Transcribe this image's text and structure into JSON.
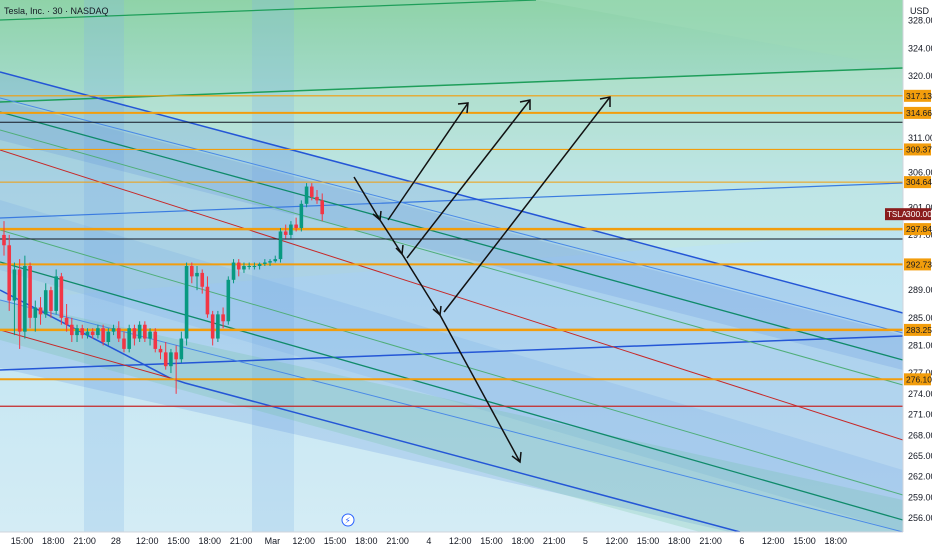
{
  "header": {
    "title": "Tesla, Inc. · 30 · NASDAQ"
  },
  "chart_data": {
    "type": "candlestick",
    "symbol": "TSLA",
    "currency": "USD",
    "ylim": [
      254.0,
      331.0
    ],
    "y_ticks": [
      256.0,
      259.0,
      262.0,
      265.0,
      268.0,
      271.0,
      274.0,
      277.0,
      281.0,
      285.0,
      289.0,
      297.0,
      301.0,
      306.0,
      311.0,
      320.0,
      324.0,
      328.0
    ],
    "x_ticks": [
      "15:00",
      "18:00",
      "21:00",
      "28",
      "12:00",
      "15:00",
      "18:00",
      "21:00",
      "Mar",
      "12:00",
      "15:00",
      "18:00",
      "21:00",
      "4",
      "12:00",
      "15:00",
      "18:00",
      "21:00",
      "5",
      "12:00",
      "15:00",
      "18:00",
      "21:00",
      "6",
      "12:00",
      "15:00",
      "18:00"
    ],
    "bars_per_tick": 6,
    "price_labels": [
      {
        "value": 317.13,
        "text": "317.13",
        "color": "#f29d0c",
        "text_color": "#131722"
      },
      {
        "value": 314.66,
        "text": "314.66",
        "color": "#f29d0c",
        "text_color": "#131722"
      },
      {
        "value": 309.37,
        "text": "309.37",
        "color": "#f29d0c",
        "text_color": "#131722"
      },
      {
        "value": 304.64,
        "text": "304.64",
        "color": "#f29d0c",
        "text_color": "#131722"
      },
      {
        "value": 300.0,
        "text": "300.00",
        "color": "#8a1d1d",
        "text_color": "#ffffff",
        "symbol": "TSLA"
      },
      {
        "value": 297.84,
        "text": "297.84",
        "color": "#f29d0c",
        "text_color": "#131722"
      },
      {
        "value": 292.73,
        "text": "292.73",
        "color": "#f29d0c",
        "text_color": "#131722"
      },
      {
        "value": 283.25,
        "text": "283.25",
        "color": "#f29d0c",
        "text_color": "#131722"
      },
      {
        "value": 276.1,
        "text": "276.10",
        "color": "#f29d0c",
        "text_color": "#131722"
      }
    ],
    "horizontal_lines": [
      {
        "value": 317.13,
        "color": "#f29d0c",
        "width": 1.2
      },
      {
        "value": 314.66,
        "color": "#f29d0c",
        "width": 2
      },
      {
        "value": 313.3,
        "color": "#131722",
        "width": 1
      },
      {
        "value": 309.37,
        "color": "#f29d0c",
        "width": 1.2
      },
      {
        "value": 304.64,
        "color": "#f29d0c",
        "width": 1
      },
      {
        "value": 297.84,
        "color": "#f29d0c",
        "width": 2.5
      },
      {
        "value": 296.4,
        "color": "#131722",
        "width": 1
      },
      {
        "value": 292.73,
        "color": "#f29d0c",
        "width": 2
      },
      {
        "value": 283.25,
        "color": "#f29d0c",
        "width": 2.5
      },
      {
        "value": 276.1,
        "color": "#f29d0c",
        "width": 2
      },
      {
        "value": 272.2,
        "color": "#c62828",
        "width": 1.2
      }
    ],
    "candles": [
      {
        "o": 297.0,
        "h": 299.0,
        "l": 294.0,
        "c": 295.5
      },
      {
        "o": 295.5,
        "h": 297.0,
        "l": 286.0,
        "c": 287.5
      },
      {
        "o": 287.5,
        "h": 293.0,
        "l": 282.5,
        "c": 292.0
      },
      {
        "o": 292.0,
        "h": 293.5,
        "l": 280.5,
        "c": 283.0
      },
      {
        "o": 283.0,
        "h": 294.0,
        "l": 282.0,
        "c": 292.5
      },
      {
        "o": 292.5,
        "h": 293.0,
        "l": 283.5,
        "c": 285.0
      },
      {
        "o": 285.0,
        "h": 287.5,
        "l": 283.0,
        "c": 286.5
      },
      {
        "o": 286.5,
        "h": 288.0,
        "l": 284.0,
        "c": 285.5
      },
      {
        "o": 285.5,
        "h": 290.0,
        "l": 285.0,
        "c": 289.0
      },
      {
        "o": 289.0,
        "h": 289.5,
        "l": 285.0,
        "c": 286.0
      },
      {
        "o": 286.0,
        "h": 292.0,
        "l": 285.5,
        "c": 291.0
      },
      {
        "o": 291.0,
        "h": 291.5,
        "l": 284.0,
        "c": 285.0
      },
      {
        "o": 285.0,
        "h": 287.0,
        "l": 283.0,
        "c": 284.0
      },
      {
        "o": 284.0,
        "h": 285.0,
        "l": 281.5,
        "c": 282.5
      },
      {
        "o": 282.5,
        "h": 284.0,
        "l": 281.5,
        "c": 283.5
      },
      {
        "o": 283.5,
        "h": 284.0,
        "l": 282.0,
        "c": 282.5
      },
      {
        "o": 282.5,
        "h": 283.5,
        "l": 282.0,
        "c": 283.0
      },
      {
        "o": 283.0,
        "h": 283.5,
        "l": 282.0,
        "c": 282.5
      },
      {
        "o": 282.5,
        "h": 284.0,
        "l": 282.0,
        "c": 283.5
      },
      {
        "o": 283.5,
        "h": 284.0,
        "l": 281.0,
        "c": 281.5
      },
      {
        "o": 281.5,
        "h": 283.5,
        "l": 281.0,
        "c": 283.0
      },
      {
        "o": 283.0,
        "h": 284.0,
        "l": 282.5,
        "c": 283.5
      },
      {
        "o": 283.5,
        "h": 284.5,
        "l": 281.5,
        "c": 282.0
      },
      {
        "o": 282.0,
        "h": 283.0,
        "l": 280.0,
        "c": 280.5
      },
      {
        "o": 280.5,
        "h": 284.0,
        "l": 280.0,
        "c": 283.5
      },
      {
        "o": 283.5,
        "h": 284.0,
        "l": 281.0,
        "c": 282.0
      },
      {
        "o": 282.0,
        "h": 284.5,
        "l": 281.5,
        "c": 284.0
      },
      {
        "o": 284.0,
        "h": 284.5,
        "l": 281.5,
        "c": 282.0
      },
      {
        "o": 282.0,
        "h": 283.5,
        "l": 281.0,
        "c": 283.0
      },
      {
        "o": 283.0,
        "h": 283.5,
        "l": 280.0,
        "c": 280.5
      },
      {
        "o": 280.5,
        "h": 281.0,
        "l": 279.0,
        "c": 280.0
      },
      {
        "o": 280.0,
        "h": 281.5,
        "l": 277.5,
        "c": 278.0
      },
      {
        "o": 278.0,
        "h": 280.5,
        "l": 277.0,
        "c": 280.0
      },
      {
        "o": 280.0,
        "h": 281.0,
        "l": 274.0,
        "c": 279.0
      },
      {
        "o": 279.0,
        "h": 283.0,
        "l": 278.5,
        "c": 282.0
      },
      {
        "o": 282.0,
        "h": 293.0,
        "l": 281.0,
        "c": 292.5
      },
      {
        "o": 292.5,
        "h": 293.0,
        "l": 290.0,
        "c": 291.0
      },
      {
        "o": 291.0,
        "h": 292.5,
        "l": 289.0,
        "c": 291.5
      },
      {
        "o": 291.5,
        "h": 292.0,
        "l": 288.5,
        "c": 289.5
      },
      {
        "o": 289.5,
        "h": 291.0,
        "l": 285.0,
        "c": 285.5
      },
      {
        "o": 285.5,
        "h": 286.0,
        "l": 281.0,
        "c": 282.0
      },
      {
        "o": 282.0,
        "h": 286.0,
        "l": 281.5,
        "c": 285.5
      },
      {
        "o": 285.5,
        "h": 286.5,
        "l": 283.5,
        "c": 284.5
      },
      {
        "o": 284.5,
        "h": 291.0,
        "l": 284.0,
        "c": 290.5
      },
      {
        "o": 290.5,
        "h": 293.5,
        "l": 290.0,
        "c": 293.0
      },
      {
        "o": 293.0,
        "h": 293.5,
        "l": 291.0,
        "c": 292.0
      },
      {
        "o": 292.0,
        "h": 293.0,
        "l": 291.5,
        "c": 292.5
      },
      {
        "o": 292.5,
        "h": 293.0,
        "l": 292.0,
        "c": 292.5
      },
      {
        "o": 292.5,
        "h": 293.0,
        "l": 292.0,
        "c": 292.5
      },
      {
        "o": 292.5,
        "h": 293.0,
        "l": 292.0,
        "c": 292.8
      },
      {
        "o": 292.8,
        "h": 293.5,
        "l": 292.5,
        "c": 293.0
      },
      {
        "o": 293.0,
        "h": 293.5,
        "l": 292.5,
        "c": 293.2
      },
      {
        "o": 293.2,
        "h": 294.0,
        "l": 293.0,
        "c": 293.5
      },
      {
        "o": 293.5,
        "h": 298.0,
        "l": 293.0,
        "c": 297.5
      },
      {
        "o": 297.5,
        "h": 298.5,
        "l": 296.5,
        "c": 297.0
      },
      {
        "o": 297.0,
        "h": 299.0,
        "l": 296.5,
        "c": 298.5
      },
      {
        "o": 298.5,
        "h": 299.5,
        "l": 297.5,
        "c": 298.0
      },
      {
        "o": 298.0,
        "h": 302.0,
        "l": 297.5,
        "c": 301.5
      },
      {
        "o": 301.5,
        "h": 304.5,
        "l": 301.0,
        "c": 304.0
      },
      {
        "o": 304.0,
        "h": 304.5,
        "l": 302.0,
        "c": 302.5
      },
      {
        "o": 302.5,
        "h": 303.5,
        "l": 301.5,
        "c": 302.0
      },
      {
        "o": 302.0,
        "h": 303.0,
        "l": 299.0,
        "c": 300.0
      }
    ]
  },
  "ui": {
    "price_axis_title": "USD",
    "logo_char": "⚡"
  }
}
